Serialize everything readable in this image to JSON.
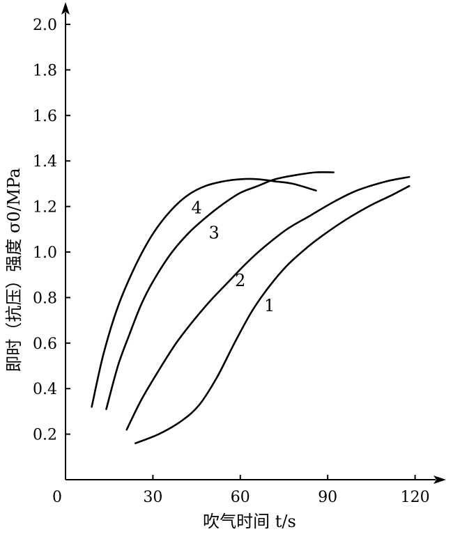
{
  "chart_data": {
    "type": "line",
    "xlabel": "吹气时间 t/s",
    "ylabel": "即时（抗压）强度 σ0/MPa",
    "xlim": [
      0,
      130
    ],
    "ylim": [
      0,
      2.1
    ],
    "x_ticks": [
      "0",
      "30",
      "60",
      "90",
      "120"
    ],
    "y_ticks": [
      "0.2",
      "0.4",
      "0.6",
      "0.8",
      "1.0",
      "1.2",
      "1.4",
      "1.6",
      "1.8",
      "2.0"
    ],
    "grid": false,
    "series": [
      {
        "name": "1",
        "x": [
          24,
          32,
          40,
          46,
          52,
          58,
          64,
          70,
          76,
          82,
          88,
          96,
          104,
          112,
          118
        ],
        "y": [
          0.16,
          0.2,
          0.26,
          0.33,
          0.45,
          0.6,
          0.74,
          0.85,
          0.94,
          1.01,
          1.07,
          1.14,
          1.2,
          1.25,
          1.29
        ],
        "label_at": [
          70,
          0.74
        ]
      },
      {
        "name": "2",
        "x": [
          21,
          26,
          32,
          38,
          44,
          50,
          56,
          62,
          68,
          76,
          84,
          92,
          100,
          110,
          118
        ],
        "y": [
          0.22,
          0.35,
          0.48,
          0.6,
          0.7,
          0.79,
          0.87,
          0.95,
          1.02,
          1.1,
          1.16,
          1.22,
          1.27,
          1.31,
          1.33
        ],
        "label_at": [
          60,
          0.85
        ]
      },
      {
        "name": "3",
        "x": [
          14,
          18,
          22,
          26,
          30,
          36,
          42,
          48,
          54,
          60,
          66,
          72,
          80,
          86,
          92
        ],
        "y": [
          0.31,
          0.5,
          0.64,
          0.77,
          0.87,
          0.99,
          1.08,
          1.15,
          1.21,
          1.26,
          1.29,
          1.32,
          1.34,
          1.35,
          1.35
        ],
        "label_at": [
          51,
          1.06
        ]
      },
      {
        "name": "4",
        "x": [
          9,
          13,
          18,
          24,
          30,
          36,
          42,
          48,
          54,
          60,
          66,
          72,
          78,
          86
        ],
        "y": [
          0.32,
          0.55,
          0.76,
          0.94,
          1.08,
          1.18,
          1.25,
          1.29,
          1.31,
          1.32,
          1.32,
          1.31,
          1.3,
          1.27
        ],
        "label_at": [
          45,
          1.17
        ]
      }
    ]
  }
}
